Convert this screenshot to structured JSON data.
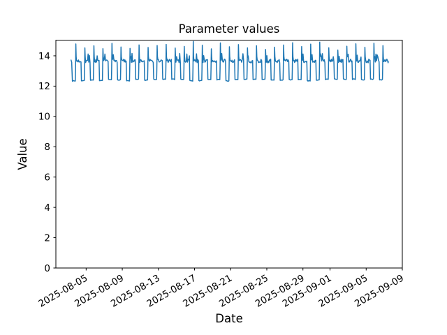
{
  "figure": {
    "background_color": "#ffffff",
    "spine_color": "#000000",
    "text_color": "#000000"
  },
  "chart_data": {
    "type": "line",
    "title": "Parameter values",
    "xlabel": "Date",
    "ylabel": "Value",
    "grid": false,
    "legend": null,
    "x_epoch_date": "2025-08-01",
    "xlim_days": [
      0.65,
      39.0
    ],
    "ylim": [
      0,
      15.03
    ],
    "yticks": [
      0,
      2,
      4,
      6,
      8,
      10,
      12,
      14
    ],
    "xticks": [
      {
        "day": 4,
        "label": "2025-08-05"
      },
      {
        "day": 8,
        "label": "2025-08-09"
      },
      {
        "day": 12,
        "label": "2025-08-13"
      },
      {
        "day": 16,
        "label": "2025-08-17"
      },
      {
        "day": 20,
        "label": "2025-08-21"
      },
      {
        "day": 24,
        "label": "2025-08-25"
      },
      {
        "day": 28,
        "label": "2025-08-29"
      },
      {
        "day": 31,
        "label": "2025-09-01"
      },
      {
        "day": 35,
        "label": "2025-09-05"
      },
      {
        "day": 39,
        "label": "2025-09-09"
      }
    ],
    "series": [
      {
        "name": "parameter",
        "color": "#1f77b4",
        "line_width": 1.5,
        "data_start_day": 2.33,
        "data_end_day": 37.45,
        "description": "Daily square-wave cycle: low plateau ~12.4 for ~8h, sharp spike to ~14.3-14.95, then noisy high plateau ~13.66 for ~13h, repeating each day from 2025-08-03 to 2025-09-06",
        "pattern": {
          "cycles": 35,
          "cycle_start_day": 2.46,
          "lead_in_points": [
            [
              2.33,
              13.72
            ],
            [
              2.4,
              13.58
            ]
          ],
          "end_day": 37.45,
          "end_value": 13.62,
          "low_base": 12.41,
          "low_day_variation": 0.07,
          "low_jitter": 0.05,
          "low_offsets": [
            0.02,
            0.1,
            0.18,
            0.26,
            0.34
          ],
          "rise_point": [
            0.365,
            13.1
          ],
          "peak_offset": 0.4,
          "post_peak_point": [
            0.435,
            13.95
          ],
          "high_base": 13.66,
          "high_jitter": 0.24,
          "high_bump": 0.38,
          "high_bump_prob": 0.13,
          "high_offsets": [
            0.48,
            0.55,
            0.62,
            0.69,
            0.76,
            0.83,
            0.9,
            0.97
          ],
          "daily_spike_peaks": [
            14.78,
            14.52,
            14.66,
            14.47,
            14.82,
            14.58,
            14.49,
            14.72,
            14.55,
            14.68,
            14.75,
            14.51,
            14.62,
            14.95,
            14.7,
            14.46,
            14.85,
            14.6,
            14.74,
            14.52,
            14.66,
            14.42,
            14.57,
            14.71,
            14.86,
            14.61,
            14.77,
            14.9,
            14.53,
            14.38,
            14.63,
            14.79,
            14.56,
            14.83,
            14.67
          ],
          "seed": 7
        }
      }
    ]
  }
}
